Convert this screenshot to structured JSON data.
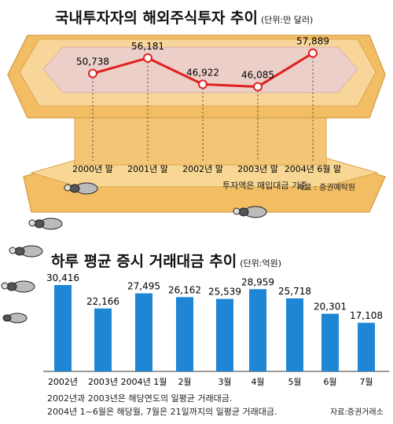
{
  "top": {
    "title": "국내투자자의 해외주식투자 추이",
    "unit": "(단위:만 달러)",
    "note": "투자액은 매입대금 기준.",
    "source": "자료 : 증권예탁원"
  },
  "bottom": {
    "title": "하루 평균  증시 거래대금 추이",
    "unit": "(단위:억원)",
    "note_1": "2002년과 2003년은 해당연도의 일평균 거래대금.",
    "note_2": "2004년 1~6월은 해당월, 7월은 21일까지의 일평균 거래대금.",
    "source": "자료:증권거래소"
  },
  "colors": {
    "line": "#e02020",
    "bar": "#1f86d6",
    "platform": "#f5c97a",
    "platform_edge": "#d9a550",
    "axis": "#333333"
  },
  "chart_data": [
    {
      "type": "line",
      "title": "국내투자자의 해외주식투자 추이",
      "unit": "만 달러",
      "categories": [
        "2000년 말",
        "2001년 말",
        "2002년 말",
        "2003년 말",
        "2004년 6월 말"
      ],
      "values": [
        50738,
        56181,
        46922,
        46085,
        57889
      ],
      "labels": [
        "50,738",
        "56,181",
        "46,922",
        "46,085",
        "57,889"
      ],
      "ylim": [
        44000,
        60000
      ]
    },
    {
      "type": "bar",
      "title": "하루 평균  증시 거래대금 추이",
      "unit": "억원",
      "categories": [
        "2002년",
        "2003년",
        "2004년 1월",
        "2월",
        "3월",
        "4월",
        "5월",
        "6월",
        "7월"
      ],
      "values": [
        30416,
        22166,
        27495,
        26162,
        25539,
        28959,
        25718,
        20301,
        17108
      ],
      "labels": [
        "30,416",
        "22,166",
        "27,495",
        "26,162",
        "25,539",
        "28,959",
        "25,718",
        "20,301",
        "17,108"
      ],
      "ylim": [
        0,
        32000
      ]
    }
  ]
}
